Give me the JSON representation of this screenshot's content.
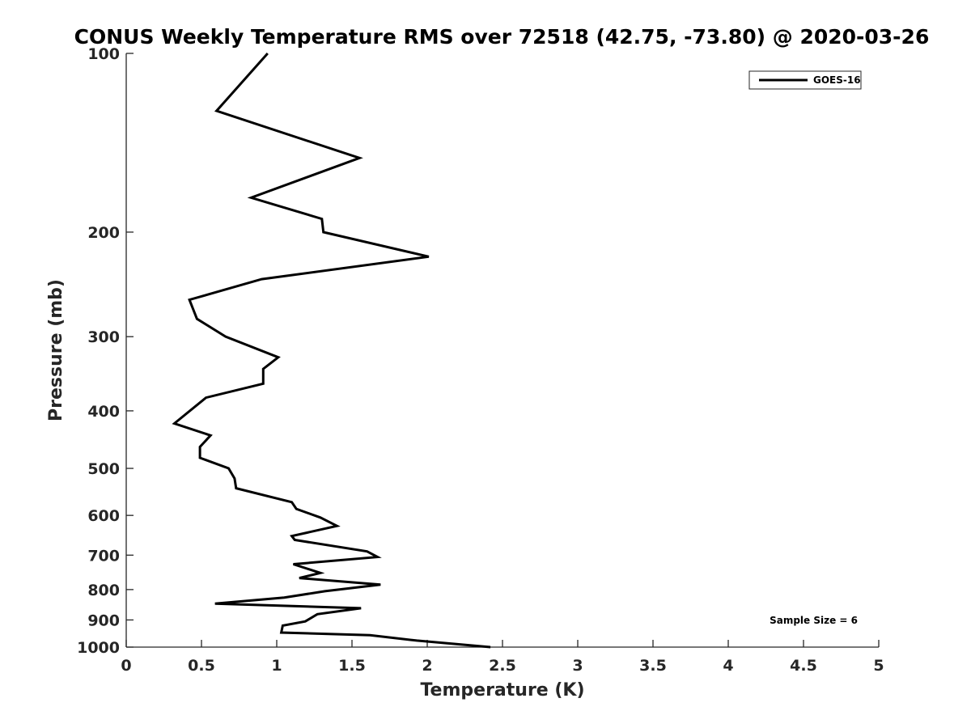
{
  "chart_data": {
    "type": "line",
    "title": "CONUS Weekly Temperature RMS over 72518 (42.75, -73.80) @ 2020-03-26",
    "xlabel": "Temperature (K)",
    "ylabel": "Pressure (mb)",
    "xlim": [
      0,
      5
    ],
    "ylim": [
      100,
      1000
    ],
    "y_scale": "log",
    "y_reversed": true,
    "grid": false,
    "x_ticks": [
      0,
      0.5,
      1,
      1.5,
      2,
      2.5,
      3,
      3.5,
      4,
      4.5,
      5
    ],
    "x_tick_labels": [
      "0",
      "0.5",
      "1",
      "1.5",
      "2",
      "2.5",
      "3",
      "3.5",
      "4",
      "4.5",
      "5"
    ],
    "y_ticks": [
      100,
      200,
      300,
      400,
      500,
      600,
      700,
      800,
      900,
      1000
    ],
    "y_tick_labels": [
      "100",
      "200",
      "300",
      "400",
      "500",
      "600",
      "700",
      "800",
      "900",
      "1000"
    ],
    "legend": {
      "position": "top-right",
      "entries": [
        "GOES-16"
      ]
    },
    "annotation": "Sample Size = 6",
    "series": [
      {
        "name": "GOES-16",
        "color": "#000000",
        "points": [
          [
            0.94,
            100
          ],
          [
            0.6,
            125
          ],
          [
            1.55,
            150
          ],
          [
            0.83,
            175
          ],
          [
            1.3,
            190
          ],
          [
            1.31,
            200
          ],
          [
            2.01,
            220
          ],
          [
            0.9,
            240
          ],
          [
            0.42,
            260
          ],
          [
            0.47,
            280
          ],
          [
            0.66,
            300
          ],
          [
            1.01,
            325
          ],
          [
            0.91,
            340
          ],
          [
            0.91,
            360
          ],
          [
            0.53,
            380
          ],
          [
            0.32,
            420
          ],
          [
            0.56,
            440
          ],
          [
            0.49,
            460
          ],
          [
            0.49,
            480
          ],
          [
            0.68,
            500
          ],
          [
            0.72,
            520
          ],
          [
            0.73,
            540
          ],
          [
            1.1,
            570
          ],
          [
            1.13,
            585
          ],
          [
            1.29,
            605
          ],
          [
            1.4,
            625
          ],
          [
            1.1,
            650
          ],
          [
            1.12,
            660
          ],
          [
            1.6,
            690
          ],
          [
            1.67,
            705
          ],
          [
            1.11,
            725
          ],
          [
            1.29,
            750
          ],
          [
            1.15,
            765
          ],
          [
            1.69,
            785
          ],
          [
            1.32,
            805
          ],
          [
            1.05,
            825
          ],
          [
            0.59,
            845
          ],
          [
            1.56,
            860
          ],
          [
            1.27,
            880
          ],
          [
            1.19,
            905
          ],
          [
            1.04,
            920
          ],
          [
            1.03,
            945
          ],
          [
            1.62,
            955
          ],
          [
            1.93,
            975
          ],
          [
            2.42,
            1000
          ]
        ]
      }
    ]
  }
}
